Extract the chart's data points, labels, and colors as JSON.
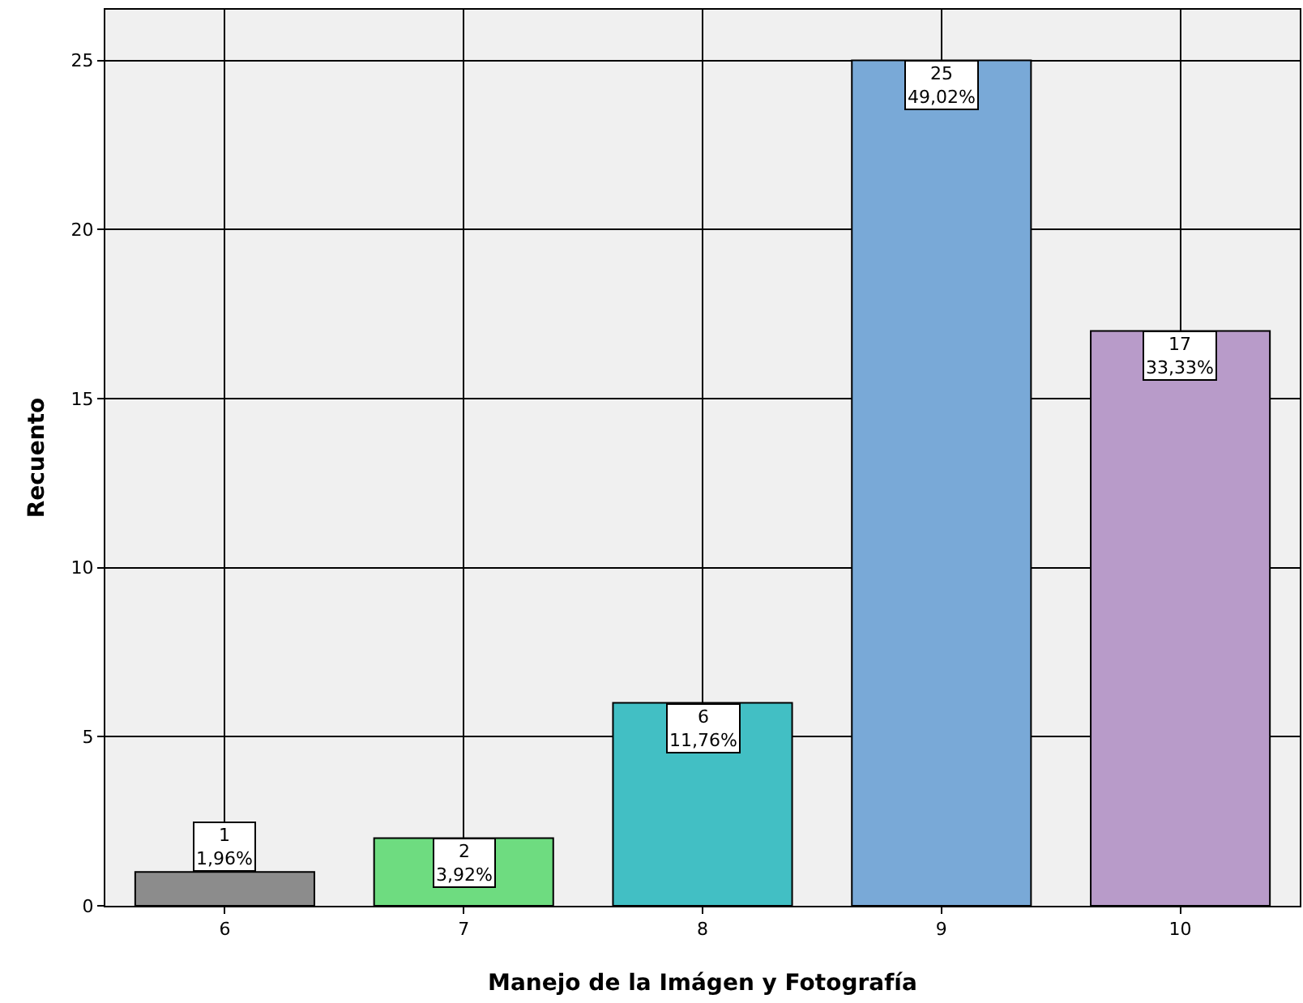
{
  "chart_data": {
    "type": "bar",
    "xlabel": "Manejo de la Imágen y Fotografía",
    "ylabel": "Recuento",
    "categories": [
      "6",
      "7",
      "8",
      "9",
      "10"
    ],
    "values": [
      1,
      2,
      6,
      25,
      17
    ],
    "colors": [
      "#8c8c8c",
      "#6edc80",
      "#42bfc4",
      "#79a9d7",
      "#b89bc9"
    ],
    "value_labels": [
      "1\n1,96%",
      "2\n3,92%",
      "6\n11,76%",
      "25\n49,02%",
      "17\n33,33%"
    ],
    "ylim": [
      0,
      26.5
    ],
    "yticks": [
      0,
      5,
      10,
      15,
      20,
      25
    ],
    "grid": true
  }
}
